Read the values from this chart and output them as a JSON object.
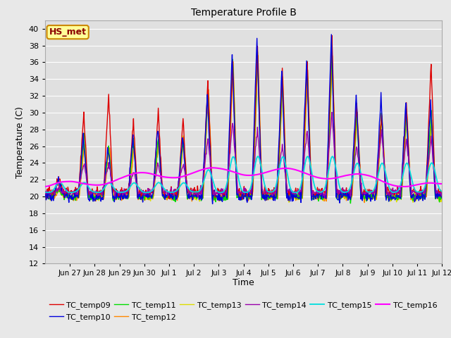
{
  "title": "Temperature Profile B",
  "xlabel": "Time",
  "ylabel": "Temperature (C)",
  "ylim": [
    12,
    41
  ],
  "yticks": [
    12,
    14,
    16,
    18,
    20,
    22,
    24,
    26,
    28,
    30,
    32,
    34,
    36,
    38,
    40
  ],
  "annotation": "HS_met",
  "series_colors": {
    "TC_temp09": "#dd0000",
    "TC_temp10": "#0000dd",
    "TC_temp11": "#00dd00",
    "TC_temp12": "#ff8800",
    "TC_temp13": "#dddd00",
    "TC_temp14": "#9900aa",
    "TC_temp15": "#00dddd",
    "TC_temp16": "#ff00ff"
  },
  "bg_color": "#e0e0e0",
  "grid_color": "#ffffff",
  "fig_bg": "#e8e8e8",
  "xtick_positions": [
    1,
    2,
    3,
    4,
    5,
    6,
    7,
    8,
    9,
    10,
    11,
    12,
    13,
    14,
    15,
    16
  ],
  "xtick_labels": [
    "Jun 27",
    "Jun 28",
    "Jun 29",
    "Jun 30",
    "Jul 1",
    "Jul 2",
    "Jul 3",
    "Jul 4",
    "Jul 5",
    "Jul 6",
    "Jul 7",
    "Jul 8",
    "Jul 9",
    "Jul 10",
    "Jul 11",
    "Jul 12"
  ]
}
